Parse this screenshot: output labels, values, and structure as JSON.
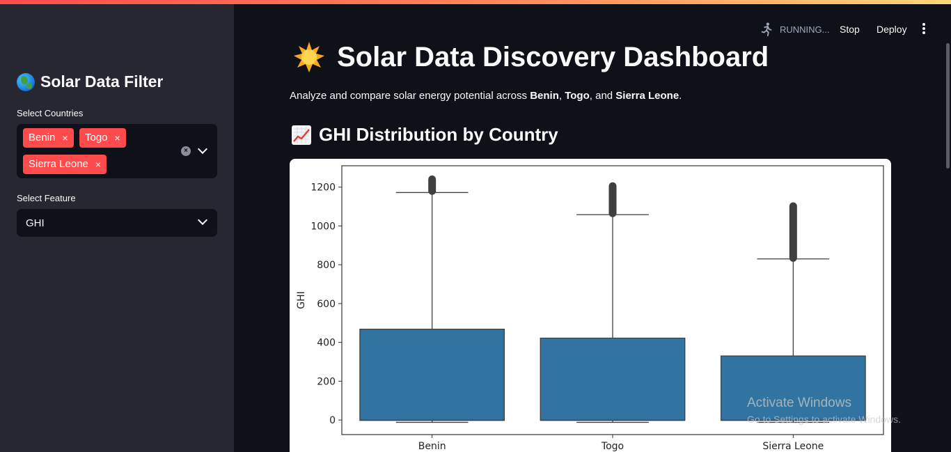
{
  "colors": {
    "accent": "#ff4b4b",
    "sidebar_bg": "#262730",
    "main_bg": "#0e1117",
    "box_fill": "#3274a1"
  },
  "sidebar": {
    "title": "Solar Data Filter",
    "title_icon": "globe-icon",
    "countries_label": "Select Countries",
    "selected_countries": [
      "Benin",
      "Togo",
      "Sierra Leone"
    ],
    "tag_remove_glyph": "×",
    "clear_glyph": "×",
    "feature_label": "Select Feature",
    "feature_value": "GHI"
  },
  "toolbar": {
    "status": "RUNNING...",
    "stop_label": "Stop",
    "deploy_label": "Deploy"
  },
  "main": {
    "title": "Solar Data Discovery Dashboard",
    "intro_prefix": "Analyze and compare solar energy potential across ",
    "intro_c1": "Benin",
    "intro_sep1": ", ",
    "intro_c2": "Togo",
    "intro_sep2": ", and ",
    "intro_c3": "Sierra Leone",
    "intro_suffix": ".",
    "section_title": "GHI Distribution by Country"
  },
  "chart_data": {
    "type": "box",
    "ylabel": "GHI",
    "xlabel": "",
    "ylim": [
      -75,
      1310
    ],
    "yticks": [
      0,
      200,
      400,
      600,
      800,
      1000,
      1200
    ],
    "categories": [
      "Benin",
      "Togo",
      "Sierra Leone"
    ],
    "boxes": [
      {
        "min": -12,
        "q1": -2,
        "median": -1,
        "q3": 468,
        "max": 1172,
        "outlier_min": 1180,
        "outlier_max": 1240
      },
      {
        "min": -12,
        "q1": -2,
        "median": -1,
        "q3": 422,
        "max": 1058,
        "outlier_min": 1065,
        "outlier_max": 1205
      },
      {
        "min": -12,
        "q1": -2,
        "median": -1,
        "q3": 330,
        "max": 830,
        "outlier_min": 835,
        "outlier_max": 1102
      }
    ]
  },
  "watermark": {
    "line1": "Activate Windows",
    "line2": "Go to Settings to activate Windows."
  }
}
